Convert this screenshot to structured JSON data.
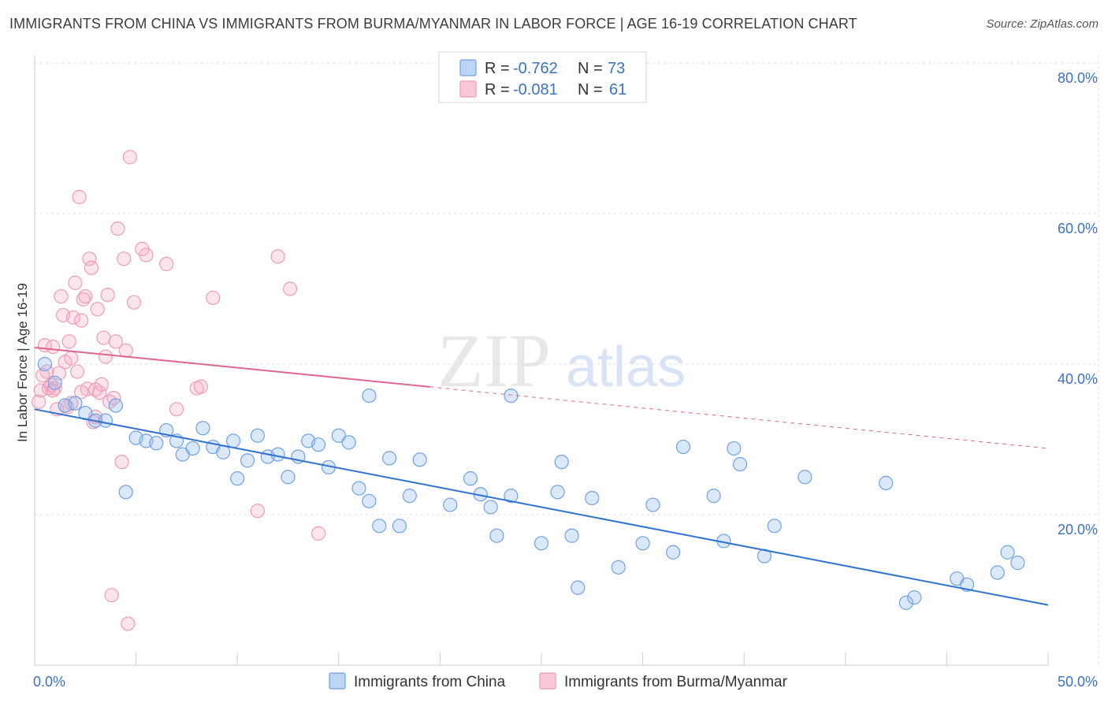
{
  "title": "IMMIGRANTS FROM CHINA VS IMMIGRANTS FROM BURMA/MYANMAR IN LABOR FORCE | AGE 16-19 CORRELATION CHART",
  "source": "Source: ZipAtlas.com",
  "watermark": {
    "zip": "ZIP",
    "atlas": "atlas"
  },
  "colors": {
    "china": "#6fa2e6",
    "china_line": "#2f72d2",
    "burma": "#f19bb8",
    "burma_line": "#e0668f",
    "axis_text": "#3b72c6"
  },
  "legend": {
    "rows": [
      {
        "r_label": "R =",
        "r_value": "-0.762",
        "n_label": "N =",
        "n_value": "73"
      },
      {
        "r_label": "R =",
        "r_value": "-0.081",
        "n_label": "N =",
        "n_value": "61"
      }
    ]
  },
  "chart_data": {
    "type": "scatter",
    "title": "IMMIGRANTS FROM CHINA VS IMMIGRANTS FROM BURMA/MYANMAR IN LABOR FORCE | AGE 16-19 CORRELATION CHART",
    "xlabel": "",
    "ylabel": "In Labor Force | Age 16-19",
    "xlim": [
      0,
      50
    ],
    "ylim": [
      0,
      82
    ],
    "x_tick_labels": [
      "0.0%",
      "50.0%"
    ],
    "y_tick_labels": [
      "20.0%",
      "40.0%",
      "60.0%",
      "80.0%"
    ],
    "y_ticks": [
      20,
      40,
      60,
      80
    ],
    "grid": true,
    "legend_position": "bottom",
    "series": [
      {
        "name": "Immigrants from China",
        "r": -0.762,
        "n": 73,
        "trend": {
          "x": [
            0,
            50
          ],
          "y": [
            34.0,
            8.0
          ],
          "solid_until": 50
        },
        "points": [
          [
            0.5,
            40.0
          ],
          [
            1.0,
            37.5
          ],
          [
            1.5,
            34.5
          ],
          [
            2.0,
            34.8
          ],
          [
            2.5,
            33.5
          ],
          [
            3.0,
            32.5
          ],
          [
            3.5,
            32.5
          ],
          [
            4.0,
            34.5
          ],
          [
            4.5,
            23.0
          ],
          [
            5.0,
            30.2
          ],
          [
            5.5,
            29.8
          ],
          [
            6.0,
            29.5
          ],
          [
            6.5,
            31.2
          ],
          [
            7.0,
            29.8
          ],
          [
            7.3,
            28.0
          ],
          [
            7.8,
            28.8
          ],
          [
            8.3,
            31.5
          ],
          [
            8.8,
            29.0
          ],
          [
            9.3,
            28.3
          ],
          [
            9.8,
            29.8
          ],
          [
            10.0,
            24.8
          ],
          [
            10.5,
            27.2
          ],
          [
            11.0,
            30.5
          ],
          [
            11.5,
            27.7
          ],
          [
            12.0,
            28.0
          ],
          [
            12.5,
            25.0
          ],
          [
            13.0,
            27.7
          ],
          [
            13.5,
            29.8
          ],
          [
            14.0,
            29.3
          ],
          [
            14.5,
            26.3
          ],
          [
            15.0,
            30.5
          ],
          [
            15.5,
            29.6
          ],
          [
            16.0,
            23.5
          ],
          [
            16.5,
            21.8
          ],
          [
            17.0,
            18.5
          ],
          [
            17.5,
            27.5
          ],
          [
            18.0,
            18.5
          ],
          [
            18.5,
            22.5
          ],
          [
            19.0,
            27.3
          ],
          [
            16.5,
            35.8
          ],
          [
            20.5,
            21.3
          ],
          [
            21.5,
            24.8
          ],
          [
            22.0,
            22.7
          ],
          [
            22.5,
            21.0
          ],
          [
            22.8,
            17.2
          ],
          [
            23.5,
            22.5
          ],
          [
            23.5,
            35.8
          ],
          [
            25.0,
            16.2
          ],
          [
            25.8,
            23.0
          ],
          [
            26.0,
            27.0
          ],
          [
            26.5,
            17.2
          ],
          [
            26.8,
            10.3
          ],
          [
            27.5,
            22.2
          ],
          [
            28.8,
            13.0
          ],
          [
            30.0,
            16.2
          ],
          [
            30.5,
            21.3
          ],
          [
            31.5,
            15.0
          ],
          [
            32.0,
            29.0
          ],
          [
            33.5,
            22.5
          ],
          [
            34.0,
            16.5
          ],
          [
            34.5,
            28.8
          ],
          [
            34.8,
            26.7
          ],
          [
            36.0,
            14.5
          ],
          [
            36.5,
            18.5
          ],
          [
            38.0,
            25.0
          ],
          [
            42.0,
            24.2
          ],
          [
            43.0,
            8.3
          ],
          [
            43.4,
            9.0
          ],
          [
            45.5,
            11.5
          ],
          [
            46.0,
            10.7
          ],
          [
            47.5,
            12.3
          ],
          [
            48.0,
            15.0
          ],
          [
            48.5,
            13.6
          ]
        ]
      },
      {
        "name": "Immigrants from Burma/Myanmar",
        "r": -0.081,
        "n": 61,
        "trend": {
          "x": [
            0,
            50
          ],
          "y": [
            42.2,
            28.8
          ],
          "solid_until": 19.5
        },
        "points": [
          [
            0.2,
            35.0
          ],
          [
            0.3,
            36.5
          ],
          [
            0.5,
            42.5
          ],
          [
            0.6,
            39.0
          ],
          [
            0.7,
            36.8
          ],
          [
            0.8,
            37.2
          ],
          [
            0.9,
            42.3
          ],
          [
            1.0,
            36.8
          ],
          [
            1.1,
            34.0
          ],
          [
            1.2,
            38.8
          ],
          [
            1.3,
            49.0
          ],
          [
            1.4,
            46.5
          ],
          [
            1.5,
            40.3
          ],
          [
            1.6,
            34.3
          ],
          [
            1.7,
            43.0
          ],
          [
            1.8,
            34.8
          ],
          [
            1.9,
            46.2
          ],
          [
            2.0,
            50.8
          ],
          [
            2.1,
            39.0
          ],
          [
            2.2,
            62.2
          ],
          [
            2.3,
            45.8
          ],
          [
            2.4,
            48.6
          ],
          [
            2.5,
            49.0
          ],
          [
            2.6,
            36.7
          ],
          [
            2.7,
            54.0
          ],
          [
            2.8,
            52.8
          ],
          [
            2.9,
            32.3
          ],
          [
            3.0,
            33.0
          ],
          [
            3.1,
            47.3
          ],
          [
            3.2,
            36.2
          ],
          [
            3.3,
            37.3
          ],
          [
            3.4,
            43.5
          ],
          [
            3.5,
            41.0
          ],
          [
            3.6,
            49.2
          ],
          [
            3.7,
            35.0
          ],
          [
            3.8,
            9.3
          ],
          [
            3.9,
            35.5
          ],
          [
            4.0,
            43.0
          ],
          [
            4.1,
            58.0
          ],
          [
            4.3,
            27.0
          ],
          [
            4.4,
            54.0
          ],
          [
            4.5,
            41.8
          ],
          [
            4.6,
            5.5
          ],
          [
            4.7,
            67.5
          ],
          [
            4.9,
            48.2
          ],
          [
            5.3,
            55.3
          ],
          [
            5.5,
            54.5
          ],
          [
            6.5,
            53.3
          ],
          [
            7.0,
            34.0
          ],
          [
            8.0,
            36.8
          ],
          [
            8.2,
            37.0
          ],
          [
            8.8,
            48.8
          ],
          [
            11.0,
            20.5
          ],
          [
            12.0,
            54.3
          ],
          [
            12.6,
            50.0
          ],
          [
            14.0,
            17.5
          ],
          [
            0.4,
            38.5
          ],
          [
            0.9,
            36.5
          ],
          [
            1.8,
            40.8
          ],
          [
            2.3,
            36.3
          ],
          [
            3.0,
            36.6
          ]
        ]
      }
    ]
  },
  "bottom_legend": {
    "china": "Immigrants from China",
    "burma": "Immigrants from Burma/Myanmar"
  }
}
